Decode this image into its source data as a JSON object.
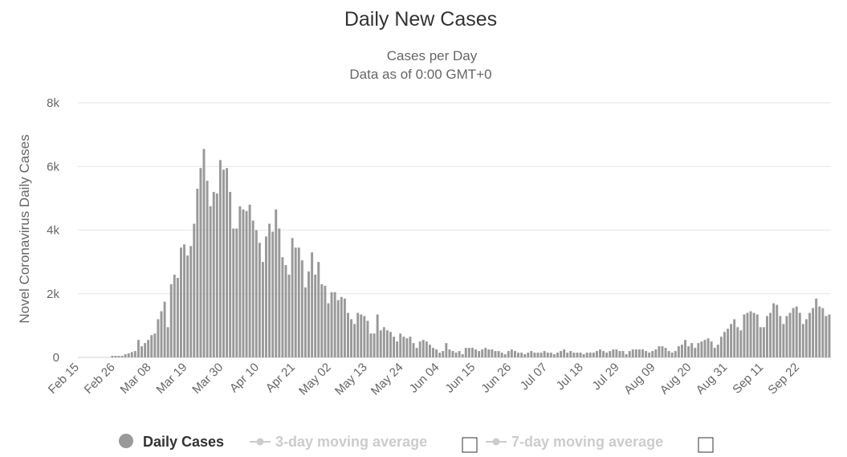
{
  "chart_data": {
    "type": "bar",
    "title": "Daily New Cases",
    "subtitle_lines": [
      "Cases per Day",
      "Data as of 0:00 GMT+0"
    ],
    "ylabel": "Novel Coronavirus Daily Cases",
    "ylim": [
      0,
      8000
    ],
    "yticks": [
      {
        "value": 0,
        "label": "0"
      },
      {
        "value": 2000,
        "label": "2k"
      },
      {
        "value": 4000,
        "label": "4k"
      },
      {
        "value": 6000,
        "label": "6k"
      },
      {
        "value": 8000,
        "label": "8k"
      }
    ],
    "x_start": "2020-02-15",
    "x_tick_labels": [
      "Feb 15",
      "Feb 26",
      "Mar 08",
      "Mar 19",
      "Mar 30",
      "Apr 10",
      "Apr 21",
      "May 02",
      "May 13",
      "May 24",
      "Jun 04",
      "Jun 15",
      "Jun 26",
      "Jul 07",
      "Jul 18",
      "Jul 29",
      "Aug 09",
      "Aug 20",
      "Aug 31",
      "Sep 11",
      "Sep 22"
    ],
    "grid": true,
    "bar_color": "#999999",
    "series": [
      {
        "name": "Daily Cases",
        "values": [
          0,
          0,
          0,
          0,
          0,
          0,
          0,
          0,
          0,
          0,
          50,
          50,
          50,
          50,
          100,
          130,
          170,
          200,
          550,
          350,
          450,
          550,
          700,
          750,
          1200,
          1450,
          1750,
          950,
          2300,
          2600,
          2500,
          3450,
          3550,
          3200,
          3500,
          4200,
          5300,
          5950,
          6550,
          5550,
          4750,
          5200,
          5150,
          6200,
          5900,
          5950,
          5200,
          4050,
          4050,
          4750,
          4650,
          4600,
          4800,
          4300,
          4000,
          3600,
          3000,
          3800,
          4200,
          3950,
          4650,
          4050,
          3150,
          2900,
          2600,
          3750,
          3450,
          3450,
          3050,
          2200,
          2700,
          3300,
          2600,
          3000,
          2300,
          2250,
          1700,
          2050,
          2050,
          1800,
          1900,
          1850,
          1400,
          1200,
          1050,
          1400,
          1350,
          1300,
          1150,
          750,
          750,
          1350,
          850,
          950,
          850,
          800,
          650,
          500,
          750,
          650,
          600,
          650,
          450,
          300,
          500,
          550,
          500,
          400,
          300,
          250,
          150,
          200,
          450,
          250,
          200,
          150,
          200,
          100,
          300,
          300,
          300,
          250,
          200,
          250,
          300,
          250,
          250,
          200,
          200,
          150,
          100,
          200,
          250,
          200,
          150,
          150,
          100,
          150,
          200,
          150,
          150,
          150,
          200,
          150,
          150,
          100,
          150,
          200,
          250,
          150,
          200,
          150,
          150,
          150,
          100,
          150,
          150,
          150,
          200,
          250,
          200,
          150,
          200,
          250,
          250,
          200,
          200,
          100,
          200,
          250,
          250,
          250,
          250,
          200,
          150,
          200,
          250,
          350,
          350,
          300,
          200,
          150,
          200,
          350,
          400,
          550,
          350,
          450,
          300,
          450,
          500,
          550,
          600,
          500,
          300,
          400,
          650,
          800,
          900,
          1050,
          1200,
          950,
          850,
          1350,
          1400,
          1450,
          1400,
          1350,
          950,
          950,
          1300,
          1400,
          1700,
          1650,
          1300,
          1050,
          1300,
          1400,
          1550,
          1600,
          1400,
          1050,
          1200,
          1400,
          1550,
          1850,
          1600,
          1550,
          1300,
          1350
        ]
      }
    ],
    "legend": {
      "placement": "bottom-center",
      "items": [
        {
          "label": "Daily Cases",
          "active": true,
          "color": "#999999"
        },
        {
          "label": "3-day moving average",
          "active": false,
          "color": "#cccccc"
        },
        {
          "label": "7-day moving average",
          "active": false,
          "color": "#cccccc"
        }
      ]
    }
  }
}
